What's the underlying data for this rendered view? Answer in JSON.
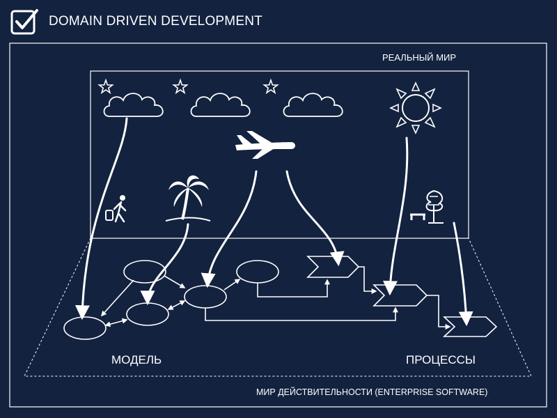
{
  "header": {
    "title": "DOMAIN DRIVEN DEVELOPMENT",
    "icon": "checkbox-check-icon"
  },
  "labels": {
    "real_world": "РЕАЛЬНЫЙ МИР",
    "model": "МОДЕЛЬ",
    "processes": "ПРОЦЕССЫ",
    "reality_world": "МИР  ДЕЙСТВИТЕЛЬНОСТИ (ENTERPRISE SOFTWARE)"
  },
  "icons": [
    "star-icon",
    "cloud-icon",
    "sun-icon",
    "airplane-icon",
    "palm-tree-icon",
    "traveler-icon",
    "bench-tree-icon"
  ],
  "colors": {
    "background": "#13223f",
    "foreground": "#ffffff"
  }
}
